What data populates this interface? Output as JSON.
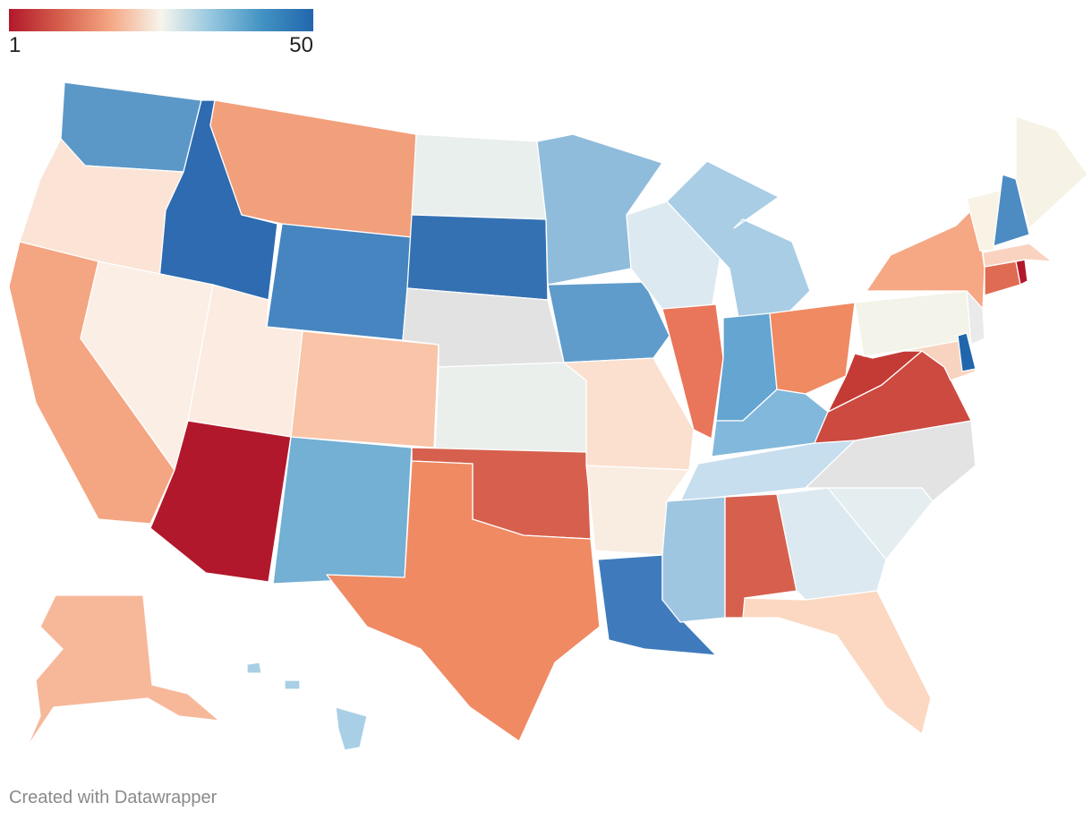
{
  "legend": {
    "min_label": "1",
    "max_label": "50",
    "colors": [
      "#b2182b",
      "#d6604d",
      "#f4a582",
      "#f7f5ec",
      "#92c5de",
      "#4393c3",
      "#2166ac"
    ]
  },
  "credit": "Created with Datawrapper",
  "states": {
    "WA": "#5b98c8",
    "OR": "#fbe4d6",
    "CA": "#f4a582",
    "ID": "#2e6bb0",
    "NV": "#fbeee4",
    "UT": "#fbebe0",
    "AZ": "#b2182b",
    "MT": "#f29f7b",
    "WY": "#4685bf",
    "CO": "#f9c4a8",
    "NM": "#74afd4",
    "ND": "#e9efed",
    "SD": "#3471b2",
    "NE": "#e2e2e2",
    "KS": "#eaefec",
    "OK": "#d6604d",
    "TX": "#ef8a63",
    "MN": "#90bcdc",
    "IA": "#5f9ccb",
    "MO": "#fbdfcf",
    "AR": "#f9ede2",
    "LA": "#3f7bbc",
    "WI": "#dce9f1",
    "IL": "#e9755a",
    "MI": "#a9cde5",
    "IN": "#64a5d1",
    "OH": "#ef8a63",
    "KY": "#82b8db",
    "TN": "#c6deee",
    "MS": "#9fc6e1",
    "AL": "#d6604d",
    "GA": "#dde9f1",
    "FL": "#fcd8c2",
    "SC": "#e4eef0",
    "NC": "#e3e3e3",
    "VA": "#cd4a40",
    "WV": "#c43a35",
    "PA": "#f4f3e9",
    "NY": "#f6a783",
    "VT": "#f8f3e5",
    "NH": "#4d8bc3",
    "ME": "#f6f2e6",
    "MA": "#f9d3bf",
    "CT": "#e06b53",
    "RI": "#b2182b",
    "NJ": "#eaeaea",
    "DE": "#2166ac",
    "MD": "#f8d4c0",
    "AK": "#f7b89a",
    "HI": "#a8cfe5"
  }
}
